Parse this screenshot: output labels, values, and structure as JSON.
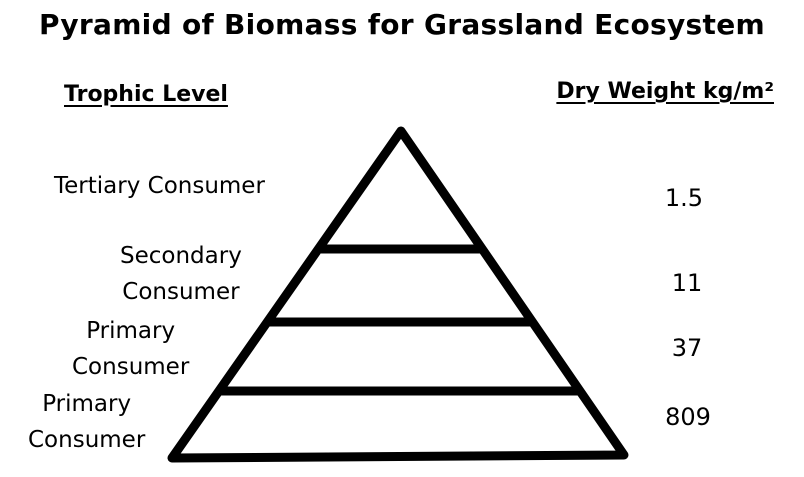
{
  "title": "Pyramid of Biomass for Grassland Ecosystem",
  "headers": {
    "trophic_level": "Trophic Level",
    "dry_weight": "Dry Weight kg/m²"
  },
  "levels": [
    {
      "label_lines": [
        "Tertiary Consumer"
      ],
      "dry_weight": "1.5"
    },
    {
      "label_lines": [
        "Secondary",
        "Consumer"
      ],
      "dry_weight": "11"
    },
    {
      "label_lines": [
        "Primary",
        "Consumer"
      ],
      "dry_weight": "37"
    },
    {
      "label_lines": [
        "Primary",
        "Consumer"
      ],
      "dry_weight": "809"
    }
  ]
}
